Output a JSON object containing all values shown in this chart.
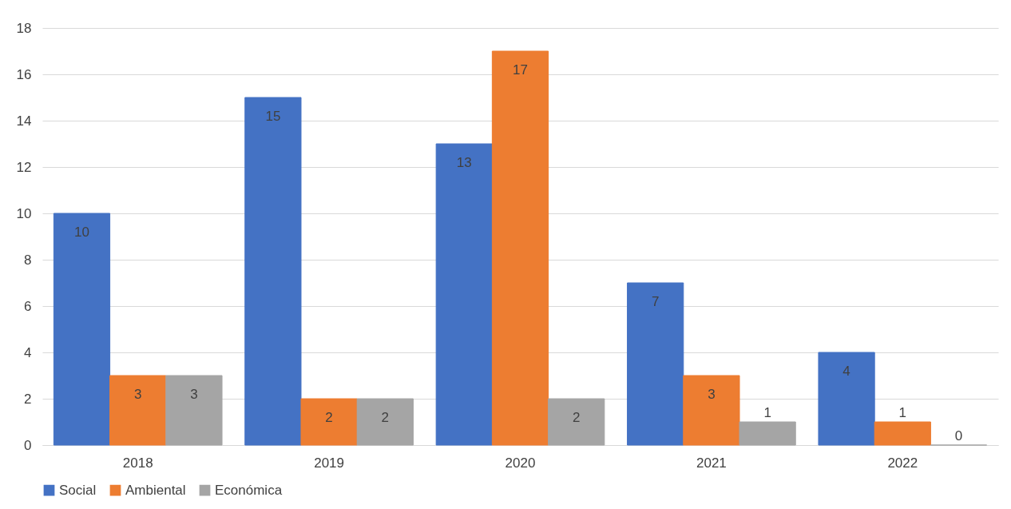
{
  "chart_data": {
    "type": "bar",
    "categories": [
      "2018",
      "2019",
      "2020",
      "2021",
      "2022"
    ],
    "series": [
      {
        "name": "Social",
        "color": "#4472c4",
        "values": [
          10,
          15,
          13,
          7,
          4
        ]
      },
      {
        "name": "Ambiental",
        "color": "#ed7d31",
        "values": [
          3,
          2,
          17,
          3,
          1
        ]
      },
      {
        "name": "Económica",
        "color": "#a5a5a5",
        "values": [
          3,
          2,
          2,
          1,
          0
        ]
      }
    ],
    "ylim": [
      0,
      18
    ],
    "yticks": [
      0,
      2,
      4,
      6,
      8,
      10,
      12,
      14,
      16,
      18
    ],
    "grid": "y",
    "legend": "bottom",
    "data_labels": true
  }
}
